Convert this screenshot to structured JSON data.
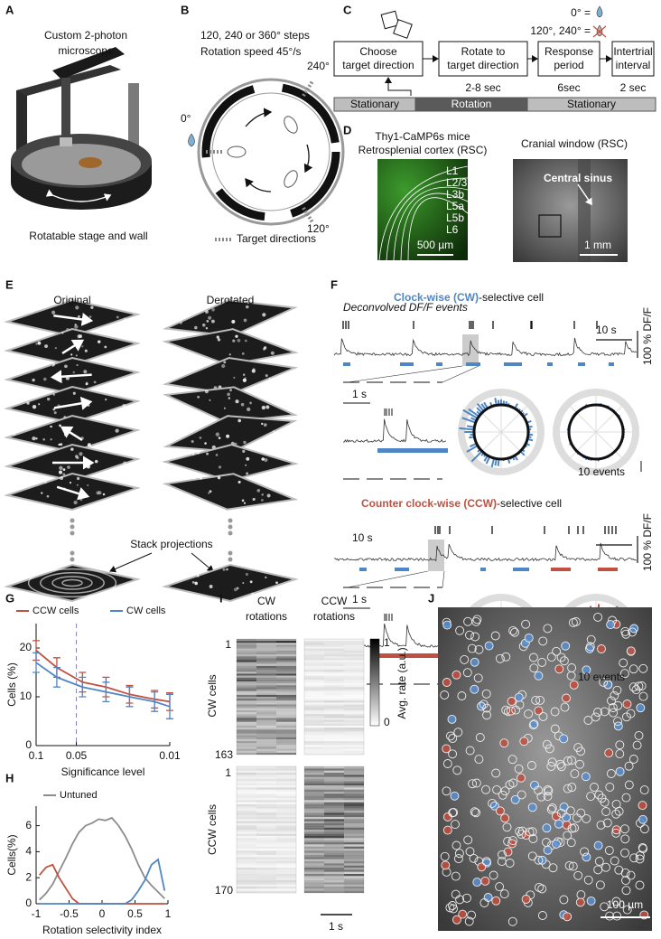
{
  "panels": {
    "a": {
      "label": "A",
      "title": [
        "Custom 2-photon",
        "microscope"
      ],
      "caption": "Rotatable stage and wall"
    },
    "b": {
      "label": "B",
      "lines": [
        "120, 240 or 360° steps",
        "Rotation speed 45°/s"
      ],
      "angles": [
        "240°",
        "0°",
        "120°"
      ],
      "legend": "Target directions"
    },
    "c": {
      "label": "C",
      "reward": "0° =",
      "no_reward": "120°, 240° =",
      "steps": [
        [
          "Choose",
          "target direction"
        ],
        [
          "Rotate to",
          "target direction"
        ],
        [
          "Response",
          "period"
        ],
        [
          "Intertrial",
          "interval"
        ]
      ],
      "durations": [
        "2-8 sec",
        "6sec",
        "2 sec"
      ],
      "phases": [
        "Stationary",
        "Rotation",
        "Stationary"
      ]
    },
    "d": {
      "label": "D",
      "left_title": [
        "Thy1-CaMP6s mice",
        "Retrosplenial cortex (RSC)"
      ],
      "layers": [
        "L1",
        "L2/3",
        "L3b",
        "L5a",
        "L5b",
        "L6"
      ],
      "left_scale": "500 µm",
      "right_title": "Cranial window (RSC)",
      "annotation": "Central sinus",
      "right_scale": "1 mm"
    },
    "e": {
      "label": "E",
      "columns": [
        "Original",
        "Derotated"
      ],
      "projection": "Stack projections"
    },
    "f": {
      "label": "F",
      "events_label": "Deconvolved DF/F events",
      "cells": [
        {
          "name": "Clock-wise (CW)",
          "suffix": "-selective cell",
          "time_scale": "10 s",
          "df_scale": "100 % DF/F",
          "inset_scale": "1 s",
          "event_scale": "10 events"
        },
        {
          "name": "Counter clock-wise (CCW)",
          "suffix": "-selective cell",
          "time_scale": "10 s",
          "df_scale": "100 % DF/F",
          "inset_scale": "1 s",
          "event_scale": "10 events"
        }
      ]
    },
    "i": {
      "label": "I",
      "columns": [
        [
          "CW",
          "rotations"
        ],
        [
          "CCW",
          "rotations"
        ]
      ],
      "rows": [
        {
          "first": "1",
          "name": "CW cells",
          "last": "163"
        },
        {
          "first": "1",
          "name": "CCW cells",
          "last": "170"
        }
      ],
      "colorbar": {
        "max": "1",
        "min": "0",
        "label": "Avg. rate (a.u.)"
      },
      "time_scale": "1 s"
    },
    "j": {
      "label": "J",
      "scale": "100 µm"
    }
  },
  "chart_data": [
    {
      "type": "line",
      "label": "G",
      "xlabel": "Significance level",
      "ylabel": "Cells (%)",
      "log_x": true,
      "x": [
        0.1,
        0.07,
        0.045,
        0.03,
        0.02,
        0.013,
        0.01
      ],
      "xlim": [
        0.1,
        0.01
      ],
      "xticks": [
        0.1,
        0.05,
        0.01
      ],
      "ylim": [
        0,
        25
      ],
      "yticks": [
        0,
        10,
        20
      ],
      "marker_x": 0.05,
      "series": [
        {
          "name": "CCW cells",
          "color": "#c0503f",
          "values": [
            19.5,
            16,
            13,
            12,
            10.5,
            9.5,
            9
          ],
          "errors": [
            2,
            2,
            2,
            2,
            1.8,
            1.8,
            1.8
          ]
        },
        {
          "name": "CW cells",
          "color": "#4f86c6",
          "values": [
            17,
            14,
            12,
            11,
            10,
            9,
            8
          ],
          "errors": [
            2,
            2,
            2,
            2,
            2,
            2,
            2.5
          ]
        }
      ]
    },
    {
      "type": "line",
      "label": "H",
      "xlabel": "Rotation selectivity index",
      "ylabel": "Cells(%)",
      "log_x": false,
      "x": [
        -0.95,
        -0.85,
        -0.75,
        -0.65,
        -0.55,
        -0.45,
        -0.35,
        -0.25,
        -0.15,
        -0.05,
        0.05,
        0.15,
        0.25,
        0.35,
        0.45,
        0.55,
        0.65,
        0.75,
        0.85,
        0.95
      ],
      "xlim": [
        -1,
        1
      ],
      "xticks": [
        -1,
        -0.5,
        0,
        0.5,
        1
      ],
      "ylim": [
        0,
        7.5
      ],
      "yticks": [
        0,
        2,
        4,
        6
      ],
      "series": [
        {
          "name": "Untuned",
          "color": "#8c8c8c",
          "values": [
            0.3,
            0.8,
            1.5,
            2.5,
            3.5,
            4.6,
            5.5,
            6.0,
            6.2,
            6.5,
            6.4,
            6.6,
            6.0,
            5.2,
            4.2,
            3.0,
            2.0,
            1.4,
            0.9,
            0.4
          ]
        },
        {
          "color": "#c0503f",
          "values": [
            2.2,
            2.8,
            3.0,
            2.0,
            1.2,
            0.4,
            0,
            0,
            0,
            0,
            0,
            0,
            0,
            0,
            0,
            0,
            0,
            0,
            0,
            0
          ]
        },
        {
          "color": "#4f86c6",
          "values": [
            0,
            0,
            0,
            0,
            0,
            0,
            0,
            0,
            0,
            0,
            0,
            0,
            0,
            0,
            0.3,
            1.0,
            1.8,
            3.0,
            3.4,
            1.0
          ]
        }
      ]
    }
  ]
}
